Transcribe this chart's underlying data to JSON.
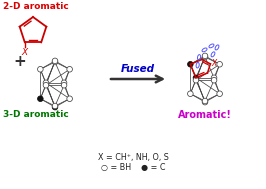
{
  "bg_color": "#ffffff",
  "label_2d": "2-D aromatic",
  "label_3d": "3-D aromatic",
  "label_aromatic": "Aromatic!",
  "label_fused": "Fused",
  "color_2d": "#dd0000",
  "color_3d": "#007700",
  "color_aromatic": "#cc00cc",
  "color_fused": "#0000cc",
  "color_cage": "#444444",
  "color_ring_red": "#cc0000",
  "color_ring_blue": "#5555ff",
  "legend_x": "X = CH⁺, NH, O, S",
  "legend_bh": "○ = BH    ● = C"
}
